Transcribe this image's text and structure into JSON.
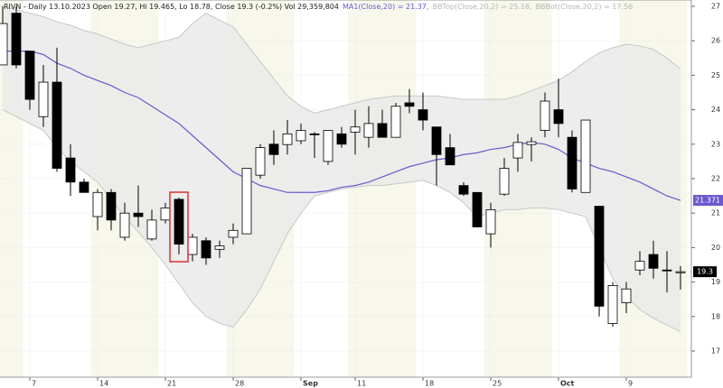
{
  "chart_data": {
    "type": "candlestick",
    "header": "RIVN - Daily 13.10.2023 Open 19.27, Hi 19.465, Lo 18.78, Close 19.3 (-0.2%) Vol 29,359,804",
    "legend": [
      {
        "text": "MA1(Close,20) = 21.37,",
        "color": "#6a5acd"
      },
      {
        "text": "BBTop(Close,20,2) = 25.18,",
        "color": "#b8b8b8"
      },
      {
        "text": "BBBot(Close,20,2) = 17.56",
        "color": "#b8b8b8"
      }
    ],
    "categories": [
      null,
      null,
      "7",
      null,
      null,
      null,
      null,
      "14",
      null,
      null,
      null,
      null,
      "21",
      null,
      null,
      null,
      null,
      "28",
      null,
      null,
      null,
      null,
      "Sep",
      null,
      null,
      null,
      "11",
      null,
      null,
      null,
      null,
      "18",
      null,
      null,
      null,
      null,
      "25",
      null,
      null,
      null,
      null,
      "Oct",
      null,
      null,
      null,
      null,
      "9",
      null,
      null,
      null,
      null
    ],
    "open": [
      25.3,
      26.8,
      25.7,
      23.8,
      24.8,
      22.6,
      21.9,
      20.9,
      21.6,
      20.3,
      21.0,
      20.25,
      20.8,
      21.4,
      19.8,
      20.2,
      19.95,
      20.3,
      20.4,
      22.1,
      23.0,
      22.99,
      23.1,
      23.3,
      22.5,
      23.3,
      23.35,
      23.2,
      23.6,
      23.2,
      24.2,
      24.0,
      23.5,
      22.9,
      21.8,
      21.6,
      20.4,
      21.55,
      22.6,
      22.99,
      23.4,
      24.0,
      23.2,
      21.6,
      21.2,
      17.8,
      18.4,
      19.35,
      19.8,
      19.35,
      19.27
    ],
    "high": [
      27.0,
      27.0,
      25.7,
      25.3,
      25.8,
      23.0,
      22.0,
      21.7,
      21.7,
      21.3,
      21.8,
      21.1,
      21.3,
      21.45,
      20.4,
      20.3,
      20.2,
      20.7,
      22.3,
      23.0,
      23.4,
      23.7,
      23.6,
      23.35,
      23.4,
      23.5,
      24.0,
      24.1,
      24.0,
      24.2,
      24.6,
      24.5,
      23.5,
      23.3,
      21.9,
      21.6,
      21.3,
      22.6,
      23.3,
      23.2,
      24.5,
      24.9,
      23.4,
      23.7,
      21.2,
      19.0,
      19.0,
      19.9,
      20.2,
      19.9,
      19.465
    ],
    "low": [
      25.3,
      25.2,
      24.0,
      23.5,
      22.2,
      21.5,
      21.6,
      20.5,
      20.5,
      20.2,
      20.6,
      20.2,
      20.7,
      19.8,
      19.6,
      19.5,
      19.7,
      20.1,
      20.4,
      22.0,
      22.4,
      22.7,
      23.0,
      22.6,
      22.4,
      22.9,
      22.7,
      22.9,
      23.2,
      23.2,
      23.9,
      23.4,
      21.8,
      22.4,
      21.5,
      20.6,
      20.0,
      21.5,
      22.2,
      22.5,
      23.2,
      23.2,
      21.6,
      21.6,
      18.0,
      17.7,
      18.1,
      19.2,
      19.1,
      18.7,
      18.78
    ],
    "close": [
      26.5,
      25.3,
      24.3,
      24.8,
      22.3,
      21.9,
      21.6,
      21.6,
      20.8,
      21.0,
      20.9,
      20.8,
      21.15,
      20.1,
      20.3,
      19.7,
      20.05,
      20.5,
      22.3,
      22.9,
      22.7,
      23.3,
      23.4,
      23.28,
      23.4,
      23.0,
      23.5,
      23.6,
      23.2,
      24.1,
      24.1,
      23.7,
      22.7,
      22.4,
      21.55,
      20.6,
      21.1,
      22.3,
      23.05,
      23.07,
      24.25,
      23.6,
      21.7,
      23.7,
      18.3,
      18.9,
      18.8,
      19.6,
      19.4,
      19.33,
      19.3
    ],
    "overlays": [
      {
        "color": "#6a5acd",
        "values": [
          25.7,
          25.7,
          25.7,
          25.6,
          25.35,
          25.2,
          25.0,
          24.85,
          24.7,
          24.5,
          24.35,
          24.1,
          23.85,
          23.6,
          23.25,
          22.9,
          22.55,
          22.2,
          22.0,
          21.8,
          21.7,
          21.6,
          21.6,
          21.6,
          21.65,
          21.75,
          21.8,
          21.9,
          22.05,
          22.2,
          22.35,
          22.45,
          22.55,
          22.6,
          22.7,
          22.75,
          22.85,
          22.9,
          23.0,
          23.05,
          23.0,
          22.85,
          22.6,
          22.45,
          22.3,
          22.2,
          22.05,
          21.9,
          21.7,
          21.5,
          21.371
        ]
      },
      {
        "color": "#c8c8c8",
        "values": [
          27.0,
          26.9,
          26.8,
          26.7,
          26.55,
          26.45,
          26.3,
          26.2,
          26.05,
          25.9,
          25.8,
          25.9,
          26.0,
          26.1,
          26.5,
          26.8,
          26.6,
          26.4,
          25.9,
          25.4,
          24.9,
          24.4,
          24.1,
          23.9,
          24.0,
          24.1,
          24.2,
          24.3,
          24.35,
          24.4,
          24.4,
          24.4,
          24.4,
          24.35,
          24.3,
          24.3,
          24.3,
          24.3,
          24.4,
          24.55,
          24.7,
          24.85,
          25.1,
          25.4,
          25.65,
          25.8,
          25.9,
          25.85,
          25.75,
          25.5,
          25.18
        ]
      },
      {
        "color": "#c8c8c8",
        "values": [
          24.0,
          23.8,
          23.6,
          23.4,
          22.9,
          22.5,
          22.2,
          21.9,
          21.4,
          20.9,
          20.45,
          20.0,
          19.5,
          18.95,
          18.4,
          18.0,
          17.8,
          17.7,
          18.2,
          18.8,
          19.6,
          20.4,
          21.0,
          21.5,
          21.6,
          21.7,
          21.75,
          21.8,
          21.8,
          21.85,
          21.9,
          21.95,
          21.8,
          21.6,
          21.3,
          20.9,
          21.0,
          21.1,
          21.1,
          21.15,
          21.15,
          21.1,
          21.0,
          20.9,
          20.0,
          19.1,
          18.6,
          18.2,
          17.95,
          17.75,
          17.56
        ]
      }
    ],
    "highlight_index": 13,
    "highlight_color": "#e03030",
    "ylim": [
      16.8,
      27.18
    ],
    "yticks": [
      17,
      18,
      19,
      20,
      21,
      22,
      23,
      24,
      25,
      26,
      27
    ],
    "grid": true
  }
}
